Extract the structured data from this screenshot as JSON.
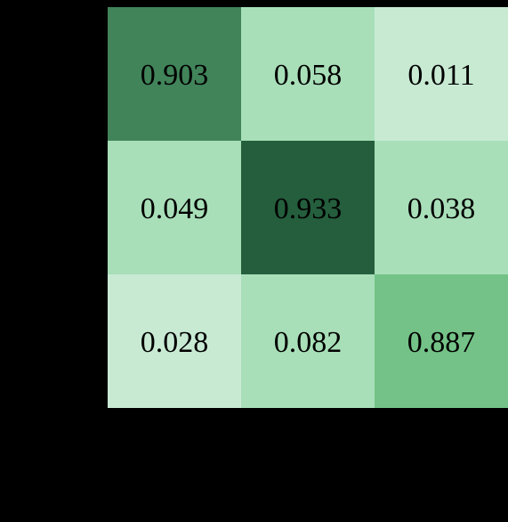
{
  "chart_data": {
    "type": "heatmap",
    "title": "",
    "xlabel": "",
    "ylabel": "",
    "rows": 3,
    "cols": 3,
    "values": [
      [
        0.903,
        0.058,
        0.011
      ],
      [
        0.049,
        0.933,
        0.038
      ],
      [
        0.028,
        0.082,
        0.887
      ]
    ],
    "labels": [
      [
        "0.903",
        "0.058",
        "0.011"
      ],
      [
        "0.049",
        "0.933",
        "0.038"
      ],
      [
        "0.028",
        "0.082",
        "0.887"
      ]
    ],
    "colorscale": "Greens",
    "cell_colors": [
      [
        "#41845a",
        "#a8dfb8",
        "#c8ead3"
      ],
      [
        "#a8dfb8",
        "#245e3d",
        "#a8dfb8"
      ],
      [
        "#c8ead3",
        "#a8dfb8",
        "#74c287"
      ]
    ],
    "background": "#000000",
    "text_color": "#000000"
  }
}
